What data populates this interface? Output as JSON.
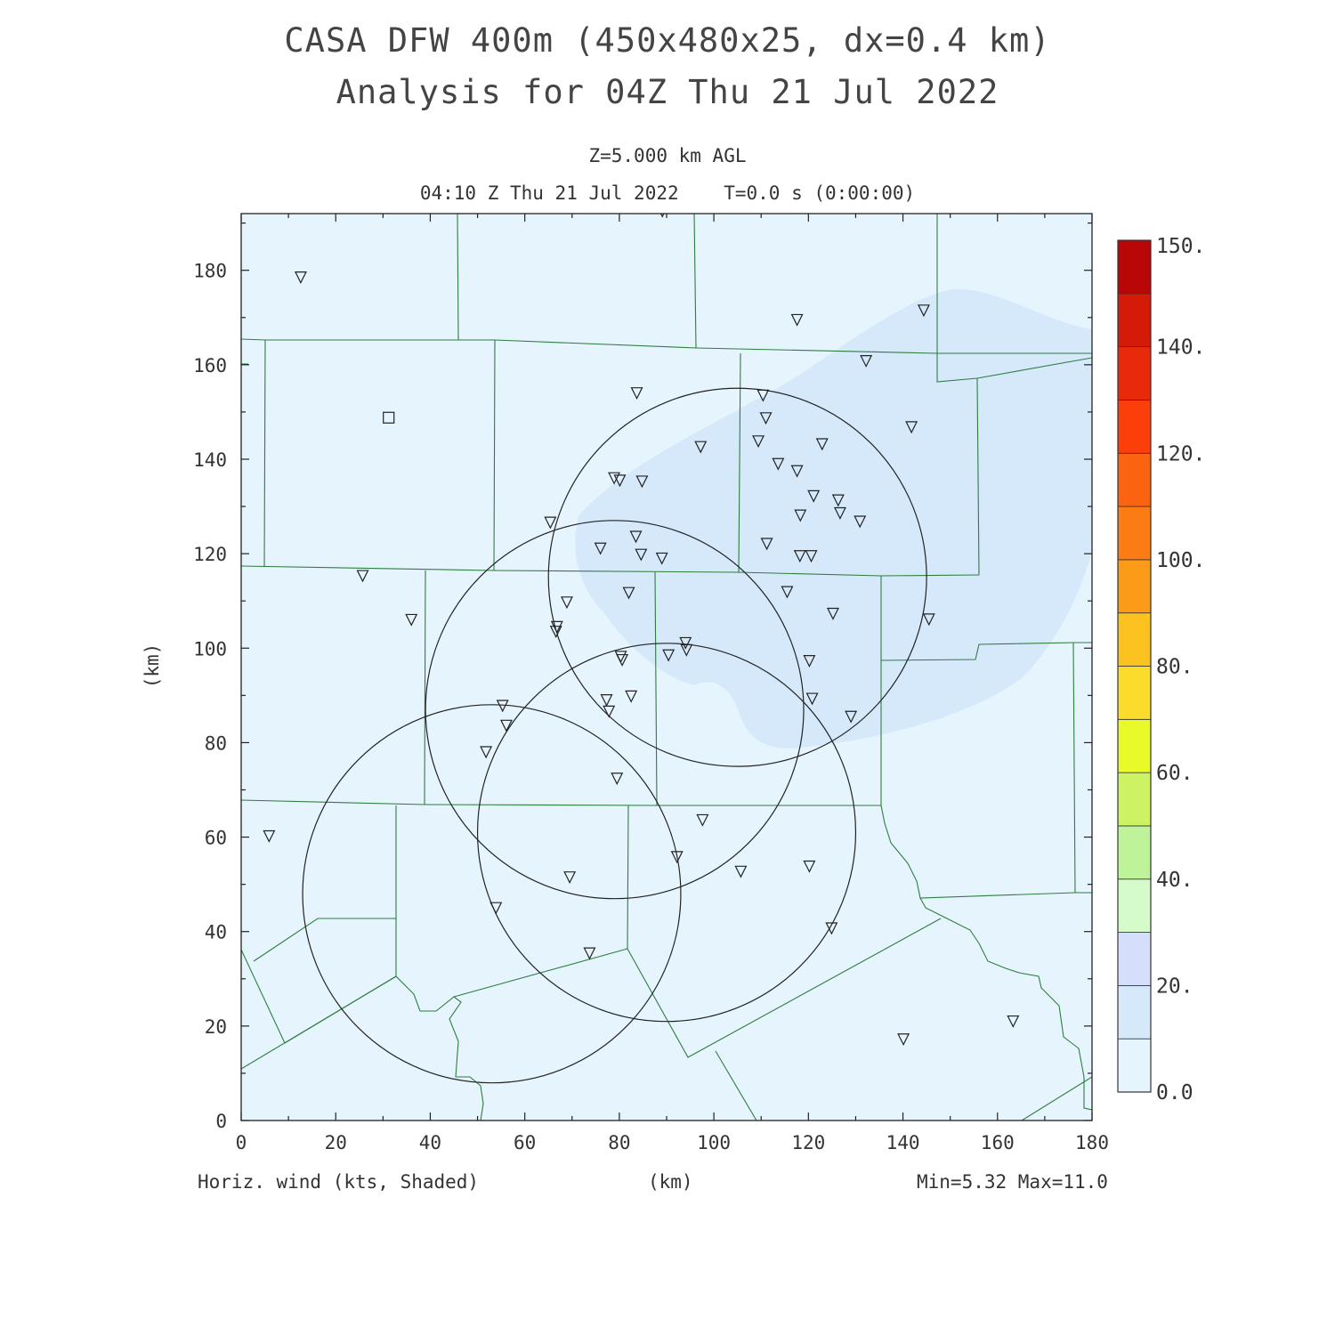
{
  "header": {
    "title_line1": "CASA DFW 400m (450x480x25, dx=0.4 km)",
    "title_line2": "Analysis for 04Z Thu 21 Jul 2022",
    "level": "Z=5.000 km AGL",
    "valid_time": "04:10 Z Thu 21 Jul 2022    T=0.0 s (0:00:00)"
  },
  "footer": {
    "field_label": "Horiz. wind (kts, Shaded)",
    "x_axis_label": "(km)",
    "min_max": "Min=5.32 Max=11.0"
  },
  "axes": {
    "x_ticks": [
      "0",
      "20",
      "40",
      "60",
      "80",
      "100",
      "120",
      "140",
      "160",
      "180"
    ],
    "y_ticks": [
      "0",
      "20",
      "40",
      "60",
      "80",
      "100",
      "120",
      "140",
      "160",
      "180"
    ],
    "y_label": "(km)",
    "x_range": [
      0,
      180
    ],
    "y_range": [
      0,
      192
    ]
  },
  "colorbar": {
    "labels": [
      "0.0",
      "20.",
      "40.",
      "60.",
      "80.",
      "100.",
      "120.",
      "140.",
      "150."
    ],
    "colors": [
      "#e6f4fd",
      "#d6e9fb",
      "#d5defa",
      "#d4fbc9",
      "#bff39a",
      "#cdf264",
      "#e8fa2a",
      "#fbdc2c",
      "#fbc220",
      "#fb9b17",
      "#fb7c14",
      "#fb6310",
      "#fc3e0b",
      "#e82a0a",
      "#d31b08",
      "#b90707"
    ]
  },
  "map": {
    "background_color": "#e6f4fd",
    "shade_color": "#d6e9fb",
    "county_line_color": "#2e7d3e",
    "station_symbol": "triangle-down",
    "radar_symbol": "square",
    "radars": [
      {
        "cx": 53,
        "cy": 48,
        "r": 40
      },
      {
        "cx": 79,
        "cy": 87,
        "r": 40
      },
      {
        "cx": 90,
        "cy": 61,
        "r": 40
      },
      {
        "cx": 105,
        "cy": 115,
        "r": 40
      }
    ],
    "stations": [
      [
        12.6,
        178.5
      ],
      [
        89.1,
        192.5
      ],
      [
        117.6,
        169.5
      ],
      [
        144.4,
        171.5
      ],
      [
        132.2,
        160.8
      ],
      [
        83.7,
        154
      ],
      [
        110.4,
        153.5
      ],
      [
        111,
        148.7
      ],
      [
        109.4,
        143.8
      ],
      [
        122.9,
        143.2
      ],
      [
        97.2,
        142.6
      ],
      [
        141.8,
        146.8
      ],
      [
        113.6,
        139
      ],
      [
        117.6,
        137.5
      ],
      [
        78.9,
        136
      ],
      [
        80.1,
        135.5
      ],
      [
        84.8,
        135.3
      ],
      [
        121.1,
        132.2
      ],
      [
        126.3,
        131.3
      ],
      [
        126.7,
        128.6
      ],
      [
        118.3,
        128.1
      ],
      [
        130.9,
        126.8
      ],
      [
        65.4,
        126.6
      ],
      [
        83.5,
        123.6
      ],
      [
        76,
        121.1
      ],
      [
        111.2,
        122.1
      ],
      [
        84.6,
        119.8
      ],
      [
        89,
        119
      ],
      [
        118.2,
        119.5
      ],
      [
        120.6,
        119.5
      ],
      [
        25.7,
        115.3
      ],
      [
        68.9,
        109.7
      ],
      [
        82,
        111.7
      ],
      [
        115.5,
        111.9
      ],
      [
        125.2,
        107.3
      ],
      [
        36,
        106
      ],
      [
        66.8,
        104.5
      ],
      [
        66.6,
        103.5
      ],
      [
        145.5,
        106.1
      ],
      [
        94,
        101.1
      ],
      [
        94.2,
        99.6
      ],
      [
        80.3,
        98.2
      ],
      [
        80.6,
        97.5
      ],
      [
        90.4,
        98.5
      ],
      [
        120.2,
        97.3
      ],
      [
        77.3,
        89
      ],
      [
        82.5,
        89.8
      ],
      [
        120.8,
        89.3
      ],
      [
        77.8,
        86.6
      ],
      [
        55.3,
        87.8
      ],
      [
        56.1,
        83.6
      ],
      [
        129,
        85.5
      ],
      [
        51.8,
        78
      ],
      [
        79.5,
        72.4
      ],
      [
        97.6,
        63.6
      ],
      [
        5.9,
        60.2
      ],
      [
        92.2,
        55.8
      ],
      [
        120.2,
        53.8
      ],
      [
        69.5,
        51.5
      ],
      [
        105.7,
        52.7
      ],
      [
        53.9,
        45
      ],
      [
        124.9,
        40.7
      ],
      [
        73.7,
        35.4
      ],
      [
        163.3,
        21
      ],
      [
        140.1,
        17.2
      ]
    ],
    "radar_sites": [
      [
        31.2,
        148.8
      ]
    ]
  }
}
